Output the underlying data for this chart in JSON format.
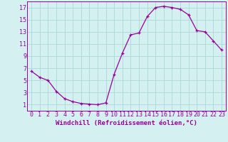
{
  "x": [
    0,
    1,
    2,
    3,
    4,
    5,
    6,
    7,
    8,
    9,
    10,
    11,
    12,
    13,
    14,
    15,
    16,
    17,
    18,
    19,
    20,
    21,
    22,
    23
  ],
  "y": [
    6.5,
    5.5,
    5.0,
    3.2,
    2.0,
    1.5,
    1.2,
    1.1,
    1.0,
    1.3,
    6.0,
    9.5,
    12.5,
    12.8,
    15.5,
    17.0,
    17.2,
    17.0,
    16.7,
    15.8,
    13.2,
    13.0,
    11.5,
    10.0
  ],
  "line_color": "#990099",
  "marker": "+",
  "marker_size": 3,
  "bg_color": "#d4f0f0",
  "grid_color": "#aad8d8",
  "xlabel": "Windchill (Refroidissement éolien,°C)",
  "xlim": [
    -0.5,
    23.5
  ],
  "ylim": [
    0,
    18
  ],
  "yticks": [
    1,
    3,
    5,
    7,
    9,
    11,
    13,
    15,
    17
  ],
  "xticks": [
    0,
    1,
    2,
    3,
    4,
    5,
    6,
    7,
    8,
    9,
    10,
    11,
    12,
    13,
    14,
    15,
    16,
    17,
    18,
    19,
    20,
    21,
    22,
    23
  ],
  "xlabel_fontsize": 6.5,
  "tick_fontsize": 6.0,
  "line_width": 0.9,
  "marker_edge_width": 0.9
}
